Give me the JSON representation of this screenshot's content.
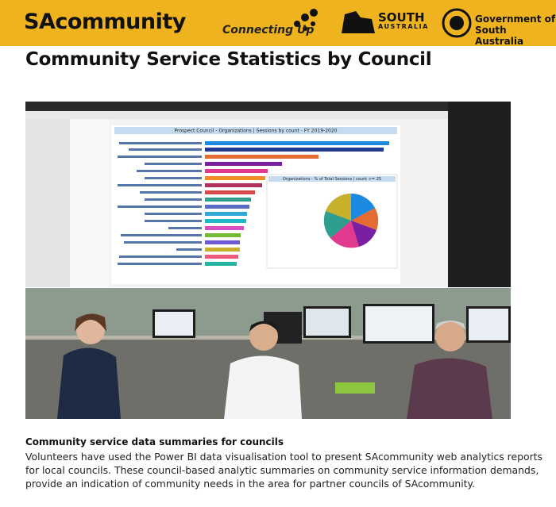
{
  "header": {
    "site_name": "SAcommunity",
    "partner": "Connecting Up",
    "state_logo": [
      "SOUTH",
      "AUSTRALIA"
    ],
    "government": [
      "Government of",
      "South Australia"
    ]
  },
  "page": {
    "title": "Community Service Statistics by Council"
  },
  "figure": {
    "dashboard_title": "Prospect Council - Organizations | Sessions by count - FY 2019-2020",
    "pie_title": "Organizations - % of Total Sessions | count >= 25"
  },
  "article": {
    "heading": "Community service data summaries for councils",
    "body": "Volunteers have used the Power BI data visualisation tool to present SAcommunity web analytics reports for local councils. These council-based analytic summaries on community service information demands, provide an indication of community needs in the area for partner councils of SAcommunity."
  }
}
